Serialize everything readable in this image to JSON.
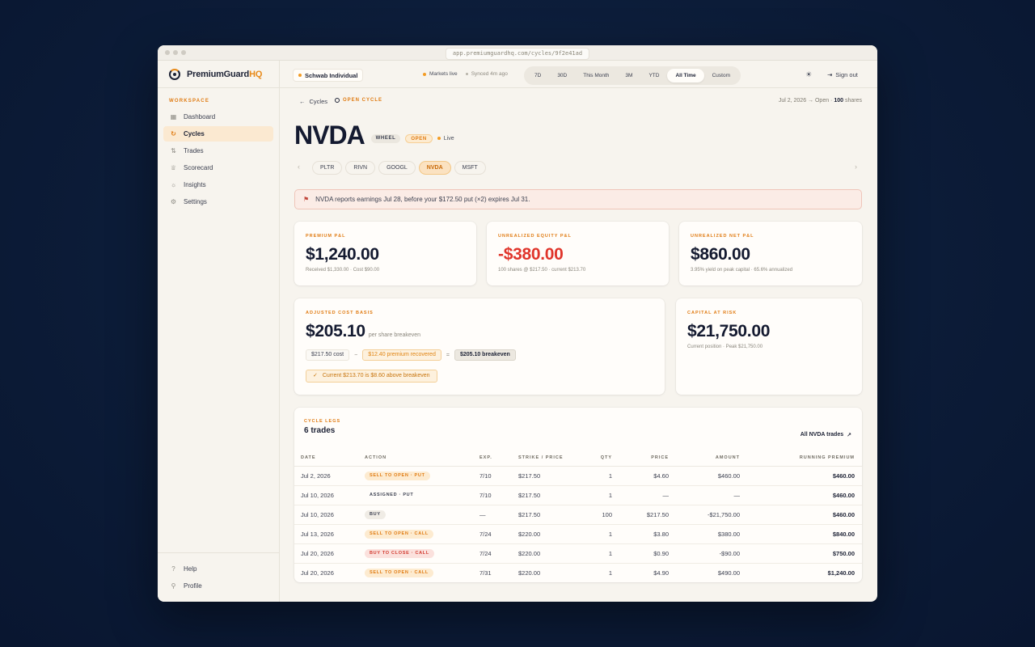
{
  "window": {
    "url": "app.premiumguardhq.com/cycles/9f2e41ad"
  },
  "brand": {
    "name_main": "PremiumGuard",
    "name_accent": "HQ"
  },
  "sidebar": {
    "section_label": "WORKSPACE",
    "items": [
      {
        "label": "Dashboard",
        "icon": "grid-icon"
      },
      {
        "label": "Cycles",
        "icon": "refresh-icon"
      },
      {
        "label": "Trades",
        "icon": "arrows-icon"
      },
      {
        "label": "Scorecard",
        "icon": "trophy-icon"
      },
      {
        "label": "Insights",
        "icon": "bulb-icon"
      },
      {
        "label": "Settings",
        "icon": "gear-icon"
      }
    ],
    "bottom": [
      {
        "label": "Help",
        "icon": "help-icon"
      },
      {
        "label": "Profile",
        "icon": "user-icon"
      }
    ]
  },
  "topbar": {
    "account": "Schwab Individual",
    "markets": "Markets live",
    "synced": "Synced 4m ago",
    "ranges": [
      "7D",
      "30D",
      "This Month",
      "3M",
      "YTD",
      "All Time",
      "Custom"
    ],
    "active_range": "All Time",
    "signout": "Sign out"
  },
  "crumb": {
    "back": "Cycles",
    "status": "OPEN CYCLE",
    "meta_prefix": "Jul 2, 2026 → Open ·",
    "meta_shares": "100",
    "meta_suffix": "shares"
  },
  "ticker": {
    "symbol": "NVDA",
    "tag_wheel": "WHEEL",
    "tag_open": "OPEN",
    "live": "Live"
  },
  "ticker_tabs": [
    "PLTR",
    "RIVN",
    "GOOGL",
    "NVDA",
    "MSFT"
  ],
  "alert": {
    "text": "NVDA reports earnings Jul 28, before your $172.50 put (×2) expires Jul 31."
  },
  "cards": {
    "premium_pl": {
      "label": "PREMIUM P&L",
      "value": "$1,240.00",
      "sub": "Received $1,330.00 · Cost $90.00"
    },
    "unrealized_equity": {
      "label": "UNREALIZED EQUITY P&L",
      "value": "-$380.00",
      "sub": "100 shares @ $217.50 · current $213.70"
    },
    "unrealized_net": {
      "label": "UNREALIZED NET P&L",
      "value": "$860.00",
      "sub": "3.95% yield on peak capital · 65.6% annualized"
    },
    "cost_basis": {
      "label": "ADJUSTED COST BASIS",
      "value": "$205.10",
      "per_share": "per share breakeven",
      "cost": "$217.50 cost",
      "minus": "−",
      "premium": "$12.40 premium recovered",
      "equals": "=",
      "breakeven": "$205.10 breakeven",
      "check": "Current $213.70 is $8.60 above breakeven"
    },
    "capital": {
      "label": "CAPITAL AT RISK",
      "value": "$21,750.00",
      "sub": "Current position · Peak $21,750.00"
    }
  },
  "legs": {
    "label": "CYCLE LEGS",
    "count": "6 trades",
    "link": "All NVDA trades",
    "columns": [
      "DATE",
      "ACTION",
      "EXP.",
      "STRIKE / PRICE",
      "QTY",
      "PRICE",
      "AMOUNT",
      "RUNNING PREMIUM"
    ],
    "rows": [
      {
        "date": "Jul 2, 2026",
        "action": "SELL TO OPEN · PUT",
        "style": "orange",
        "exp": "7/10",
        "strike": "$217.50",
        "qty": "1",
        "price": "$4.60",
        "amount": "$460.00",
        "running": "$460.00"
      },
      {
        "date": "Jul 10, 2026",
        "action": "ASSIGNED · PUT",
        "style": "plain",
        "exp": "7/10",
        "strike": "$217.50",
        "qty": "1",
        "price": "—",
        "amount": "—",
        "running": "$460.00"
      },
      {
        "date": "Jul 10, 2026",
        "action": "BUY",
        "style": "gray",
        "exp": "—",
        "strike": "$217.50",
        "qty": "100",
        "price": "$217.50",
        "amount": "-$21,750.00",
        "running": "$460.00"
      },
      {
        "date": "Jul 13, 2026",
        "action": "SELL TO OPEN · CALL",
        "style": "orange",
        "exp": "7/24",
        "strike": "$220.00",
        "qty": "1",
        "price": "$3.80",
        "amount": "$380.00",
        "running": "$840.00"
      },
      {
        "date": "Jul 20, 2026",
        "action": "BUY TO CLOSE · CALL",
        "style": "red",
        "exp": "7/24",
        "strike": "$220.00",
        "qty": "1",
        "price": "$0.90",
        "amount": "-$90.00",
        "running": "$750.00"
      },
      {
        "date": "Jul 20, 2026",
        "action": "SELL TO OPEN · CALL",
        "style": "orange",
        "exp": "7/31",
        "strike": "$220.00",
        "qty": "1",
        "price": "$4.90",
        "amount": "$490.00",
        "running": "$1,240.00"
      }
    ]
  }
}
